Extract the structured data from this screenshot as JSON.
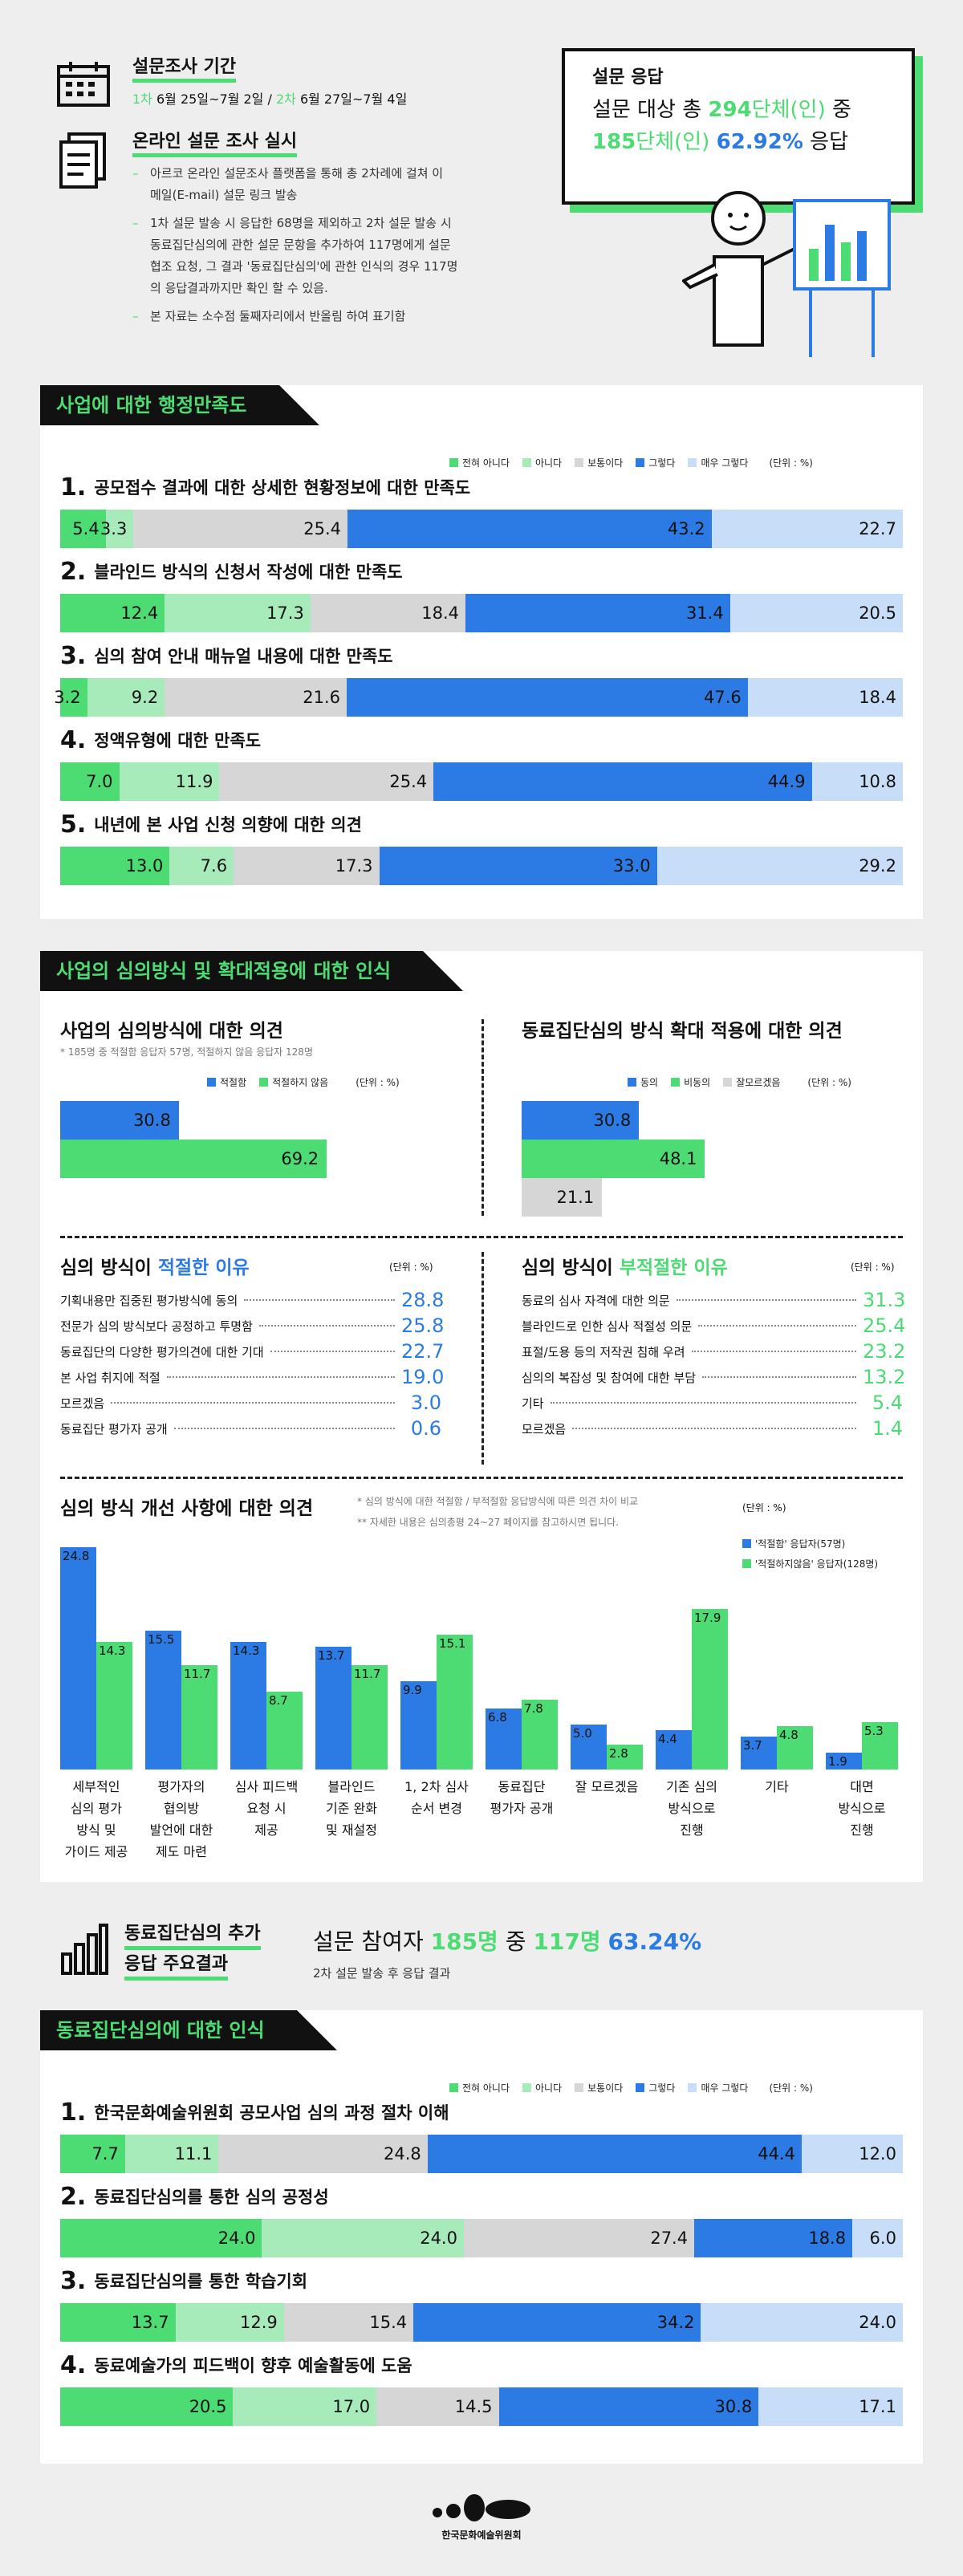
{
  "header": {
    "period_title": "설문조사 기간",
    "period_1_label": "1차",
    "period_1_text": "6월 25일~7월 2일",
    "period_sep": "/",
    "period_2_label": "2차",
    "period_2_text": "6월 27일~7월 4일",
    "online_title": "온라인 설문 조사 실시",
    "bullets": [
      "아르코 온라인 설문조사 플랫폼을 통해 총 2차례에 걸쳐 이",
      "메일(E-mail) 설문 링크 발송",
      "1차 설문 발송 시 응답한 68명을 제외하고 2차 설문 발송 시",
      "동료집단심의에 관한 설문 문항을 추가하여 117명에게 설문",
      "협조 요청, 그 결과 '동료집단심의'에 관한 인식의 경우 117명",
      "의 응답결과까지만 확인 할 수 있음.",
      "본 자료는 소수점 둘째자리에서 반올림 하여 표기함"
    ],
    "response_title": "설문 응답",
    "response_line1_pre": "설문 대상 총",
    "response_line1_num": "294",
    "response_line1_unit": "단체(인)",
    "response_line1_post": "중",
    "response_line2_num": "185",
    "response_line2_unit": "단체(인)",
    "response_line2_pct": "62.92%",
    "response_line2_post": "응답"
  },
  "section1": {
    "tab": "사업에 대한 행정만족도",
    "unit": "(단위 : %)",
    "legend": [
      "전혀 아니다",
      "아니다",
      "보통이다",
      "그렇다",
      "매우 그렇다"
    ],
    "colors": [
      "#4ddb73",
      "#a8ebbb",
      "#d6d6d6",
      "#2c7be5",
      "#c8ddf7"
    ],
    "questions": [
      {
        "num": "1.",
        "title": "공모접수 결과에 대한 상세한 현황정보에 대한 만족도",
        "values": [
          5.4,
          3.3,
          25.4,
          43.2,
          22.7
        ],
        "labels": [
          "5.4",
          "3.3",
          "25.4",
          "43.2",
          "22.7"
        ]
      },
      {
        "num": "2.",
        "title": "블라인드 방식의 신청서 작성에 대한 만족도",
        "values": [
          12.4,
          17.3,
          18.4,
          31.4,
          20.5
        ],
        "labels": [
          "12.4",
          "17.3",
          "18.4",
          "31.4",
          "20.5"
        ]
      },
      {
        "num": "3.",
        "title": "심의 참여 안내 매뉴얼 내용에 대한 만족도",
        "values": [
          3.2,
          9.2,
          21.6,
          47.6,
          18.4
        ],
        "labels": [
          "3.2",
          "9.2",
          "21.6",
          "47.6",
          "18.4"
        ]
      },
      {
        "num": "4.",
        "title": "정액유형에 대한 만족도",
        "values": [
          7.0,
          11.9,
          25.4,
          44.9,
          10.8
        ],
        "labels": [
          "7.0",
          "11.9",
          "25.4",
          "44.9",
          "10.8"
        ]
      },
      {
        "num": "5.",
        "title": "내년에 본 사업 신청 의향에 대한 의견",
        "values": [
          13.0,
          7.6,
          17.3,
          33.0,
          29.2
        ],
        "labels": [
          "13.0",
          "7.6",
          "17.3",
          "33.0",
          "29.2"
        ]
      }
    ]
  },
  "section2": {
    "tab": "사업의 심의방식 및 확대적용에 대한 인식",
    "left_title": "사업의 심의방식에 대한 의견",
    "left_note": "* 185명 중 적절함 응답자 57명, 적절하지 않음 응답자 128명",
    "left_legend": [
      "적절함",
      "적절하지 않음"
    ],
    "left_unit": "(단위 : %)",
    "left_values": [
      30.8,
      69.2
    ],
    "left_labels": [
      "30.8",
      "69.2"
    ],
    "right_title": "동료집단심의 방식 확대 적용에 대한 의견",
    "right_legend": [
      "동의",
      "비동의",
      "잘모르겠음"
    ],
    "right_unit": "(단위 : %)",
    "right_values": [
      30.8,
      48.1,
      21.1
    ],
    "right_labels": [
      "30.8",
      "48.1",
      "21.1"
    ],
    "reason_left_title_pre": "심의 방식이",
    "reason_left_title_hl": "적절한 이유",
    "reason_left_unit": "(단위 : %)",
    "reason_left": [
      {
        "label": "기획내용만 집중된 평가방식에 동의",
        "value": "28.8"
      },
      {
        "label": "전문가 심의 방식보다 공정하고 투명함",
        "value": "25.8"
      },
      {
        "label": "동료집단의 다양한 평가의견에 대한 기대",
        "value": "22.7"
      },
      {
        "label": "본 사업 취지에 적절",
        "value": "19.0"
      },
      {
        "label": "모르겠음",
        "value": "3.0"
      },
      {
        "label": "동료집단 평가자 공개",
        "value": "0.6"
      }
    ],
    "reason_right_title_pre": "심의 방식이",
    "reason_right_title_hl": "부적절한 이유",
    "reason_right_unit": "(단위 : %)",
    "reason_right": [
      {
        "label": "동료의 심사 자격에 대한 의문",
        "value": "31.3"
      },
      {
        "label": "블라인드로 인한 심사 적절성 의문",
        "value": "25.4"
      },
      {
        "label": "표절/도용 등의 저작권 침해 우려",
        "value": "23.2"
      },
      {
        "label": "심의의 복잡성 및 참여에 대한 부담",
        "value": "13.2"
      },
      {
        "label": "기타",
        "value": "5.4"
      },
      {
        "label": "모르겠음",
        "value": "1.4"
      }
    ],
    "improve_title": "심의 방식 개선 사항에 대한 의견",
    "improve_note1": "*  심의 방식에 대한 적절함 / 부적절함 응답방식에 따른 의견 차이 비교",
    "improve_note2": "** 자세한 내용은 심의총평 24~27 페이지를 참고하시면 됩니다.",
    "improve_unit": "(단위 : %)",
    "improve_legend": [
      "'적절함' 응답자(57명)",
      "'적절하지않음' 응답자(128명)"
    ]
  },
  "section3": {
    "title_line1": "동료집단심의 추가",
    "title_line2": "응답 주요결과",
    "stat_pre": "설문 참여자",
    "stat_num1": "185명",
    "stat_mid": "중",
    "stat_num2": "117명",
    "stat_pct": "63.24%",
    "stat_sub": "2차 설문 발송 후 응답 결과"
  },
  "section4": {
    "tab": "동료집단심의에 대한 인식",
    "unit": "(단위 : %)",
    "legend": [
      "전혀 아니다",
      "아니다",
      "보통이다",
      "그렇다",
      "매우 그렇다"
    ],
    "questions": [
      {
        "num": "1.",
        "title": "한국문화예술위원회 공모사업 심의 과정 절차 이해",
        "values": [
          7.7,
          11.1,
          24.8,
          44.4,
          12.0
        ],
        "labels": [
          "7.7",
          "11.1",
          "24.8",
          "44.4",
          "12.0"
        ]
      },
      {
        "num": "2.",
        "title": "동료집단심의를 통한 심의 공정성",
        "values": [
          24.0,
          24.0,
          27.4,
          18.8,
          6.0
        ],
        "labels": [
          "24.0",
          "24.0",
          "27.4",
          "18.8",
          "6.0"
        ]
      },
      {
        "num": "3.",
        "title": "동료집단심의를 통한 학습기회",
        "values": [
          13.7,
          12.9,
          15.4,
          34.2,
          24.0
        ],
        "labels": [
          "13.7",
          "12.9",
          "15.4",
          "34.2",
          "24.0"
        ]
      },
      {
        "num": "4.",
        "title": "동료예술가의 피드백이 향후 예술활동에 도움",
        "values": [
          20.5,
          17.0,
          14.5,
          30.8,
          17.1
        ],
        "labels": [
          "20.5",
          "17.0",
          "14.5",
          "30.8",
          "17.1"
        ]
      }
    ]
  },
  "footer": {
    "org": "한국문화예술위원회"
  },
  "chart_data": [
    {
      "type": "bar",
      "orientation": "horizontal-stacked",
      "title": "사업에 대한 행정만족도",
      "categories": [
        "공모접수 결과에 대한 상세한 현황정보에 대한 만족도",
        "블라인드 방식의 신청서 작성에 대한 만족도",
        "심의 참여 안내 매뉴얼 내용에 대한 만족도",
        "정액유형에 대한 만족도",
        "내년에 본 사업 신청 의향에 대한 의견"
      ],
      "series": [
        {
          "name": "전혀 아니다",
          "values": [
            5.4,
            12.4,
            3.2,
            7.0,
            13.0
          ]
        },
        {
          "name": "아니다",
          "values": [
            3.3,
            17.3,
            9.2,
            11.9,
            7.6
          ]
        },
        {
          "name": "보통이다",
          "values": [
            25.4,
            18.4,
            21.6,
            25.4,
            17.3
          ]
        },
        {
          "name": "그렇다",
          "values": [
            43.2,
            31.4,
            47.6,
            44.9,
            33.0
          ]
        },
        {
          "name": "매우 그렇다",
          "values": [
            22.7,
            20.5,
            18.4,
            10.8,
            29.2
          ]
        }
      ],
      "unit": "%"
    },
    {
      "type": "bar",
      "orientation": "horizontal",
      "title": "사업의 심의방식에 대한 의견",
      "categories": [
        "적절함",
        "적절하지 않음"
      ],
      "values": [
        30.8,
        69.2
      ],
      "unit": "%"
    },
    {
      "type": "bar",
      "orientation": "horizontal",
      "title": "동료집단심의 방식 확대 적용에 대한 의견",
      "categories": [
        "동의",
        "비동의",
        "잘모르겠음"
      ],
      "values": [
        30.8,
        48.1,
        21.1
      ],
      "unit": "%"
    },
    {
      "type": "bar",
      "orientation": "vertical-grouped",
      "title": "심의 방식 개선 사항에 대한 의견",
      "categories": [
        "세부적인\n심의 평가\n방식 및\n가이드 제공",
        "평가자의\n협의방\n발언에 대한\n제도 마련",
        "심사 피드백\n요청 시\n제공",
        "블라인드\n기준 완화\n및 재설정",
        "1, 2차 심사\n순서 변경",
        "동료집단\n평가자 공개",
        "잘 모르겠음",
        "기존 심의\n방식으로\n진행",
        "기타",
        "대면\n방식으로\n진행"
      ],
      "series": [
        {
          "name": "'적절함' 응답자(57명)",
          "values": [
            24.8,
            15.5,
            14.3,
            13.7,
            9.9,
            6.8,
            5.0,
            4.4,
            3.7,
            1.9
          ],
          "labels": [
            "24.8",
            "15.5",
            "14.3",
            "13.7",
            "9.9",
            "6.8",
            "5.0",
            "4.4",
            "3.7",
            "1.9"
          ]
        },
        {
          "name": "'적절하지않음' 응답자(128명)",
          "values": [
            14.3,
            11.7,
            8.7,
            11.7,
            15.1,
            7.8,
            2.8,
            17.9,
            4.8,
            5.3
          ],
          "labels": [
            "14.3",
            "11.7",
            "8.7",
            "11.7",
            "15.1",
            "7.8",
            "2.8",
            "17.9",
            "4.8",
            "5.3"
          ]
        }
      ],
      "ylim": [
        0,
        26
      ],
      "unit": "%"
    },
    {
      "type": "bar",
      "orientation": "horizontal-stacked",
      "title": "동료집단심의에 대한 인식",
      "categories": [
        "한국문화예술위원회 공모사업 심의 과정 절차 이해",
        "동료집단심의를 통한 심의 공정성",
        "동료집단심의를 통한 학습기회",
        "동료예술가의 피드백이 향후 예술활동에 도움"
      ],
      "series": [
        {
          "name": "전혀 아니다",
          "values": [
            7.7,
            24.0,
            13.7,
            20.5
          ]
        },
        {
          "name": "아니다",
          "values": [
            11.1,
            24.0,
            12.9,
            17.0
          ]
        },
        {
          "name": "보통이다",
          "values": [
            24.8,
            27.4,
            15.4,
            14.5
          ]
        },
        {
          "name": "그렇다",
          "values": [
            44.4,
            18.8,
            34.2,
            30.8
          ]
        },
        {
          "name": "매우 그렇다",
          "values": [
            12.0,
            6.0,
            24.0,
            17.1
          ]
        }
      ],
      "unit": "%"
    }
  ]
}
